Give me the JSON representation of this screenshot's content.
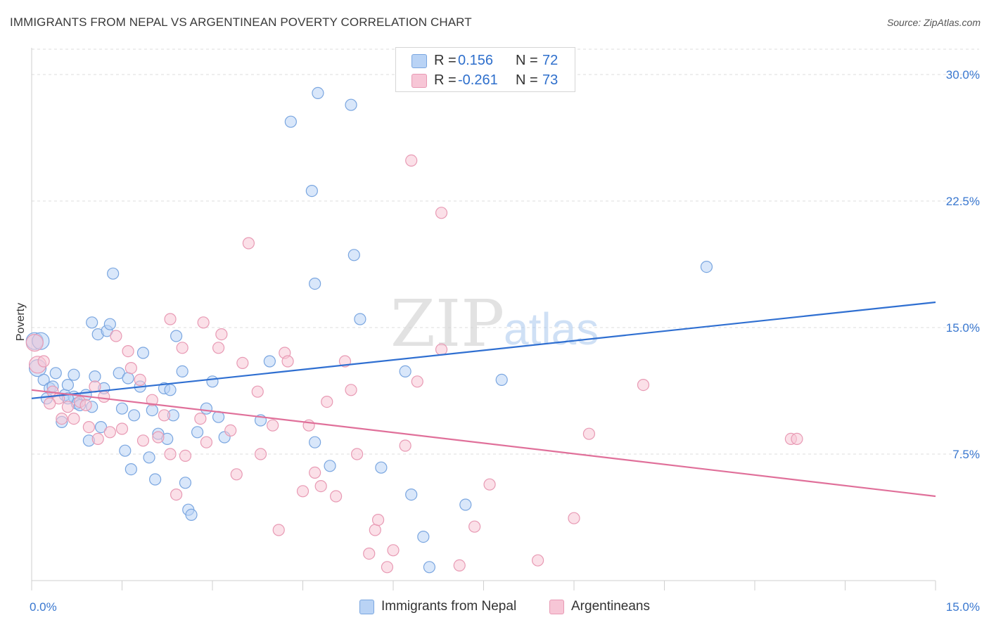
{
  "title": "IMMIGRANTS FROM NEPAL VS ARGENTINEAN POVERTY CORRELATION CHART",
  "source": "Source: ZipAtlas.com",
  "watermark": {
    "zip": "ZIP",
    "atlas": "atlas"
  },
  "legend_top": {
    "rows": [
      {
        "r_label": "R = ",
        "r_value": "0.156",
        "n_label": "N = ",
        "n_value": "72"
      },
      {
        "r_label": "R = ",
        "r_value": "-0.261",
        "n_label": "N = ",
        "n_value": "73"
      }
    ]
  },
  "colors": {
    "nepal_fill": "#b9d3f5",
    "nepal_stroke": "#7aa6e0",
    "nepal_line": "#2f6fd1",
    "arg_fill": "#f7c6d6",
    "arg_stroke": "#e89ab4",
    "arg_line": "#e0709a",
    "axis_label": "#3a78d0"
  },
  "chart_data": {
    "type": "scatter",
    "title": "IMMIGRANTS FROM NEPAL VS ARGENTINEAN POVERTY CORRELATION CHART",
    "xlabel": "",
    "ylabel": "Poverty",
    "xlim": [
      0,
      15
    ],
    "ylim": [
      0,
      31.5
    ],
    "x_ticks": [
      0,
      1.5,
      3,
      4.5,
      6,
      7.5,
      9,
      10.5,
      12,
      13.5,
      15
    ],
    "x_tick_labels": [
      {
        "value": 0,
        "label": "0.0%"
      },
      {
        "value": 15,
        "label": "15.0%"
      }
    ],
    "y_tick_labels": [
      {
        "value": 7.5,
        "label": "7.5%"
      },
      {
        "value": 15,
        "label": "15.0%"
      },
      {
        "value": 22.5,
        "label": "22.5%"
      },
      {
        "value": 30,
        "label": "30.0%"
      }
    ],
    "grid": true,
    "legend_position": "bottom",
    "series": [
      {
        "name": "Immigrants from Nepal",
        "R": 0.156,
        "N": 72,
        "trend": {
          "x": [
            0,
            15
          ],
          "y": [
            10.8,
            16.5
          ]
        },
        "points": [
          [
            0.05,
            14.2
          ],
          [
            0.1,
            12.6
          ],
          [
            0.15,
            14.2
          ],
          [
            0.2,
            11.9
          ],
          [
            0.25,
            10.8
          ],
          [
            0.3,
            11.4
          ],
          [
            0.35,
            11.5
          ],
          [
            0.4,
            12.3
          ],
          [
            0.5,
            9.4
          ],
          [
            0.55,
            11
          ],
          [
            0.6,
            11.6
          ],
          [
            0.7,
            10.9
          ],
          [
            0.7,
            12.2
          ],
          [
            0.75,
            10.5
          ],
          [
            0.8,
            10.4
          ],
          [
            0.9,
            11
          ],
          [
            0.95,
            8.3
          ],
          [
            1,
            15.3
          ],
          [
            1.05,
            12.1
          ],
          [
            1.1,
            14.6
          ],
          [
            1.15,
            9.1
          ],
          [
            1.2,
            11.4
          ],
          [
            1.25,
            14.8
          ],
          [
            1.3,
            15.2
          ],
          [
            1.35,
            18.2
          ],
          [
            1.45,
            12.3
          ],
          [
            1.5,
            10.2
          ],
          [
            1.55,
            7.7
          ],
          [
            1.6,
            12
          ],
          [
            1.65,
            6.6
          ],
          [
            1.7,
            9.8
          ],
          [
            1.8,
            11.5
          ],
          [
            1.85,
            13.5
          ],
          [
            1.95,
            7.3
          ],
          [
            2,
            10.1
          ],
          [
            2.05,
            6
          ],
          [
            2.1,
            8.7
          ],
          [
            2.2,
            11.4
          ],
          [
            2.25,
            8.4
          ],
          [
            2.3,
            11.3
          ],
          [
            2.35,
            9.8
          ],
          [
            2.4,
            14.5
          ],
          [
            2.5,
            12.4
          ],
          [
            2.55,
            5.8
          ],
          [
            2.6,
            4.2
          ],
          [
            2.65,
            3.9
          ],
          [
            2.75,
            8.8
          ],
          [
            2.9,
            10.2
          ],
          [
            3,
            11.8
          ],
          [
            3.1,
            9.7
          ],
          [
            3.2,
            8.5
          ],
          [
            3.8,
            9.5
          ],
          [
            3.95,
            13
          ],
          [
            4.3,
            27.2
          ],
          [
            4.65,
            23.1
          ],
          [
            4.7,
            17.6
          ],
          [
            4.7,
            8.2
          ],
          [
            4.75,
            28.9
          ],
          [
            4.95,
            6.8
          ],
          [
            5.3,
            28.2
          ],
          [
            5.35,
            19.3
          ],
          [
            5.45,
            15.5
          ],
          [
            5.8,
            6.7
          ],
          [
            6.2,
            12.4
          ],
          [
            6.3,
            5.1
          ],
          [
            6.5,
            2.6
          ],
          [
            6.6,
            0.8
          ],
          [
            7.2,
            4.5
          ],
          [
            7.8,
            11.9
          ],
          [
            11.2,
            18.6
          ],
          [
            0.6,
            10.8
          ],
          [
            1,
            10.3
          ]
        ]
      },
      {
        "name": "Argentineans",
        "R": -0.261,
        "N": 73,
        "trend": {
          "x": [
            0,
            15
          ],
          "y": [
            11.3,
            5.0
          ]
        },
        "points": [
          [
            0.05,
            14.1
          ],
          [
            0.1,
            12.8
          ],
          [
            0.2,
            13
          ],
          [
            0.35,
            11.2
          ],
          [
            0.45,
            10.8
          ],
          [
            0.5,
            9.6
          ],
          [
            0.6,
            10.3
          ],
          [
            0.7,
            9.6
          ],
          [
            0.8,
            10.6
          ],
          [
            0.9,
            10.4
          ],
          [
            0.95,
            9.1
          ],
          [
            1.05,
            11.5
          ],
          [
            1.1,
            8.4
          ],
          [
            1.2,
            10.9
          ],
          [
            1.3,
            8.8
          ],
          [
            1.4,
            14.5
          ],
          [
            1.5,
            9
          ],
          [
            1.6,
            13.6
          ],
          [
            1.65,
            12.6
          ],
          [
            1.8,
            11.9
          ],
          [
            1.85,
            8.3
          ],
          [
            2,
            10.7
          ],
          [
            2.1,
            8.5
          ],
          [
            2.2,
            9.8
          ],
          [
            2.3,
            7.5
          ],
          [
            2.3,
            15.5
          ],
          [
            2.4,
            5.1
          ],
          [
            2.5,
            13.8
          ],
          [
            2.55,
            7.4
          ],
          [
            2.8,
            9.6
          ],
          [
            2.85,
            15.3
          ],
          [
            2.9,
            8.2
          ],
          [
            3.1,
            13.8
          ],
          [
            3.15,
            14.6
          ],
          [
            3.3,
            8.9
          ],
          [
            3.4,
            6.3
          ],
          [
            3.5,
            12.9
          ],
          [
            3.6,
            20
          ],
          [
            3.75,
            11.2
          ],
          [
            3.8,
            7.5
          ],
          [
            4,
            9.2
          ],
          [
            4.1,
            3
          ],
          [
            4.2,
            13.5
          ],
          [
            4.25,
            13
          ],
          [
            4.5,
            5.3
          ],
          [
            4.6,
            9.2
          ],
          [
            4.7,
            6.4
          ],
          [
            4.8,
            5.6
          ],
          [
            4.9,
            10.6
          ],
          [
            5.05,
            5
          ],
          [
            5.2,
            13
          ],
          [
            5.3,
            11.3
          ],
          [
            5.4,
            7.5
          ],
          [
            5.6,
            1.6
          ],
          [
            5.7,
            3
          ],
          [
            5.75,
            3.6
          ],
          [
            5.9,
            0.8
          ],
          [
            6,
            1.8
          ],
          [
            6.2,
            8
          ],
          [
            6.3,
            24.9
          ],
          [
            6.4,
            11.8
          ],
          [
            6.8,
            21.8
          ],
          [
            6.8,
            13.7
          ],
          [
            7.1,
            0.9
          ],
          [
            7.35,
            3.2
          ],
          [
            7.6,
            5.7
          ],
          [
            8.4,
            1.2
          ],
          [
            9,
            3.7
          ],
          [
            9.25,
            8.7
          ],
          [
            10.15,
            11.6
          ],
          [
            12.6,
            8.4
          ],
          [
            12.7,
            8.4
          ],
          [
            0.3,
            10.5
          ]
        ]
      }
    ]
  }
}
